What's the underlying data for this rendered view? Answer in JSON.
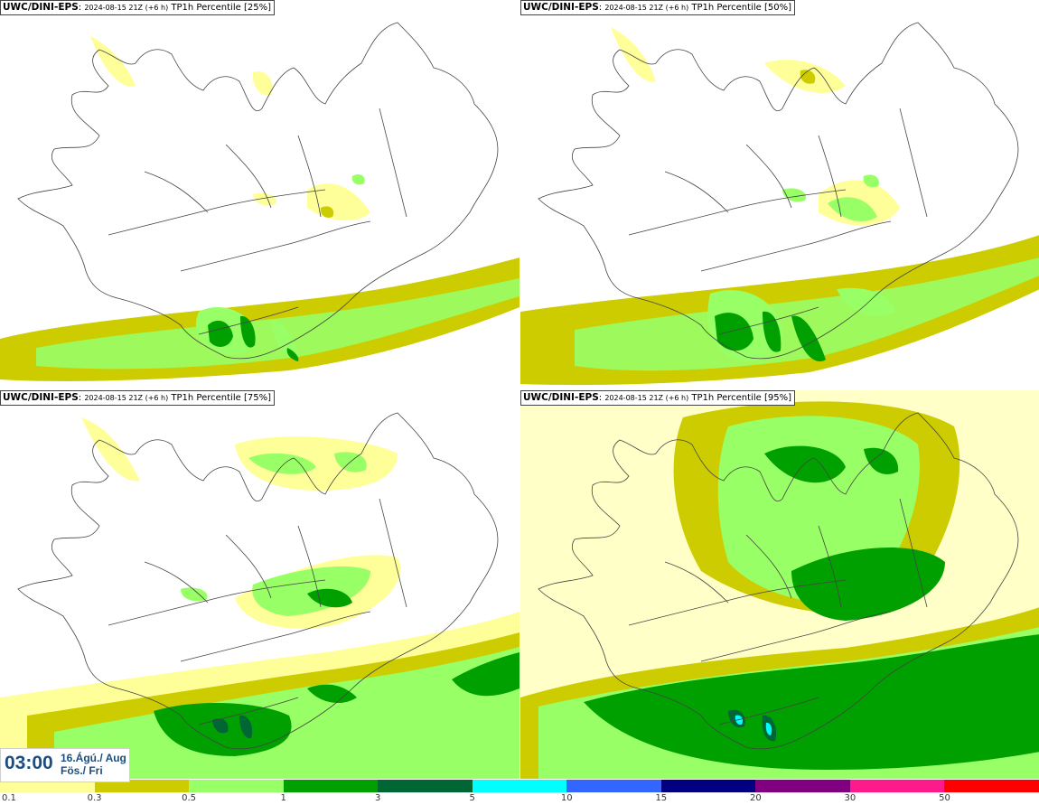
{
  "panels": [
    {
      "model": "UWC/DINI-EPS",
      "run_info": "2024-08-15 21Z (+6 h)",
      "product": "TP1h Percentile [25%]"
    },
    {
      "model": "UWC/DINI-EPS",
      "run_info": "2024-08-15 21Z (+6 h)",
      "product": "TP1h Percentile [50%]"
    },
    {
      "model": "UWC/DINI-EPS",
      "run_info": "2024-08-15 21Z (+6 h)",
      "product": "TP1h Percentile [75%]"
    },
    {
      "model": "UWC/DINI-EPS",
      "run_info": "2024-08-15 21Z (+6 h)",
      "product": "TP1h Percentile [95%]"
    }
  ],
  "timestamp": {
    "time": "03:00",
    "date_line1": "16.Ágú./ Aug",
    "date_line2": "Fös./ Fri"
  },
  "legend": {
    "labels": [
      "0.1",
      "0.3",
      "0.5",
      "1",
      "3",
      "5",
      "10",
      "15",
      "20",
      "30",
      "50"
    ],
    "colors": [
      "#ffff99",
      "#cccc00",
      "#99ff66",
      "#00a000",
      "#006633",
      "#00ffff",
      "#3366ff",
      "#000080",
      "#800080",
      "#ff1a8c",
      "#ff0000"
    ]
  },
  "colors": {
    "frame_text": "#1d4d80",
    "coastline": "#444444"
  }
}
